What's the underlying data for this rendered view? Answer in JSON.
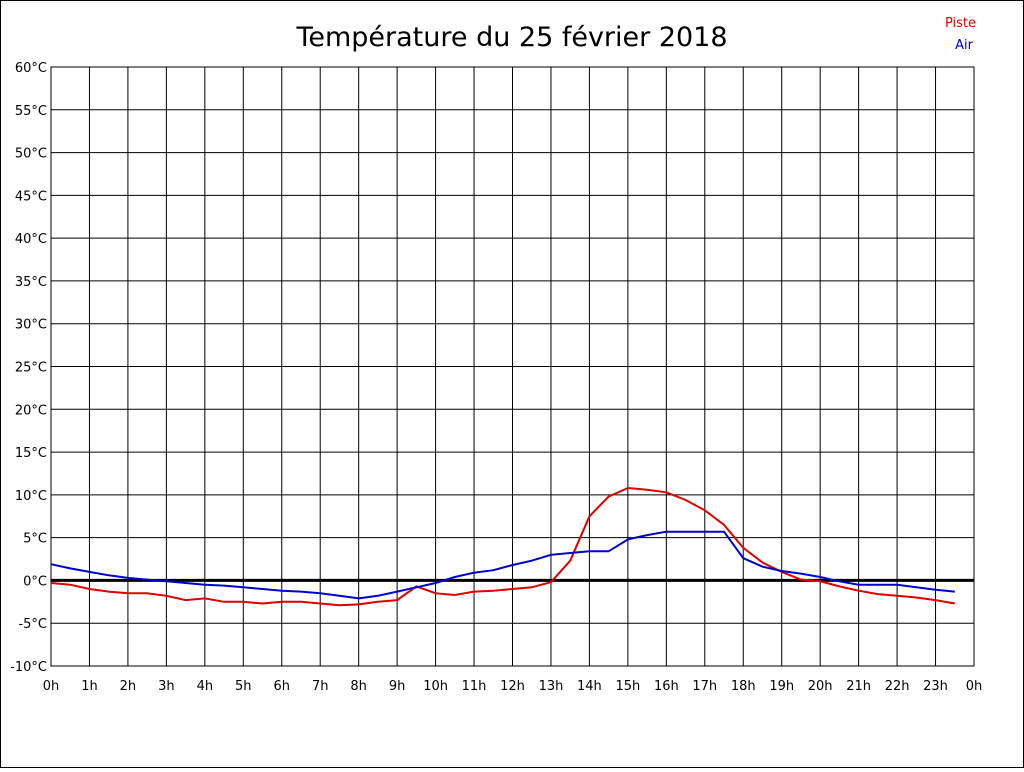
{
  "chart_data": {
    "type": "line",
    "title": "Température du 25 février 2018",
    "x_tick_labels": [
      "0h",
      "1h",
      "2h",
      "3h",
      "4h",
      "5h",
      "6h",
      "7h",
      "8h",
      "9h",
      "10h",
      "11h",
      "12h",
      "13h",
      "14h",
      "15h",
      "16h",
      "17h",
      "18h",
      "19h",
      "20h",
      "21h",
      "22h",
      "23h",
      "0h"
    ],
    "y_tick_labels": [
      "60°C",
      "55°C",
      "50°C",
      "45°C",
      "40°C",
      "35°C",
      "30°C",
      "25°C",
      "20°C",
      "15°C",
      "10°C",
      "5°C",
      "0°C",
      "-5°C",
      "-10°C"
    ],
    "xlim": [
      0,
      24
    ],
    "ylim": [
      -10,
      60
    ],
    "y_tick_values": [
      60,
      55,
      50,
      45,
      40,
      35,
      30,
      25,
      20,
      15,
      10,
      5,
      0,
      -5,
      -10
    ],
    "grid": true,
    "zero_line": true,
    "legend_position": "top-right",
    "series": [
      {
        "name": "Piste",
        "color": "#dd0000",
        "x": [
          0,
          0.5,
          1,
          1.5,
          2,
          2.5,
          3,
          3.5,
          3.75,
          4,
          4.5,
          5,
          5.5,
          6,
          6.5,
          7,
          7.5,
          8,
          8.5,
          9,
          9.5,
          10,
          10.5,
          11,
          11.5,
          12,
          12.5,
          13,
          13.5,
          14,
          14.5,
          15,
          15.5,
          16,
          16.5,
          17,
          17.5,
          18,
          18.5,
          19,
          19.5,
          20,
          20.5,
          21,
          21.5,
          22,
          22.5,
          23,
          23.5
        ],
        "y": [
          -0.3,
          -0.5,
          -1.0,
          -1.3,
          -1.5,
          -1.5,
          -1.8,
          -2.3,
          -2.2,
          -2.1,
          -2.5,
          -2.5,
          -2.7,
          -2.5,
          -2.5,
          -2.7,
          -2.9,
          -2.8,
          -2.5,
          -2.3,
          -0.7,
          -1.5,
          -1.7,
          -1.3,
          -1.2,
          -1.0,
          -0.8,
          -0.2,
          2.3,
          7.5,
          9.8,
          10.8,
          10.6,
          10.3,
          9.4,
          8.2,
          6.5,
          3.8,
          2.1,
          1.0,
          0.1,
          -0.1,
          -0.7,
          -1.2,
          -1.6,
          -1.8,
          -2.0,
          -2.3,
          -2.7
        ]
      },
      {
        "name": "Air",
        "color": "#0000cc",
        "x": [
          0,
          0.5,
          1,
          1.5,
          2,
          2.5,
          3,
          3.5,
          4,
          4.5,
          5,
          5.5,
          6,
          6.5,
          7,
          7.5,
          8,
          8.5,
          9,
          9.5,
          10,
          10.5,
          11,
          11.5,
          12,
          12.5,
          13,
          13.5,
          14,
          14.5,
          15,
          15.5,
          16,
          16.5,
          17,
          17.5,
          18,
          18.5,
          19,
          19.5,
          20,
          20.5,
          21,
          21.5,
          22,
          22.5,
          23,
          23.5
        ],
        "y": [
          1.9,
          1.4,
          1.0,
          0.6,
          0.3,
          0.1,
          -0.1,
          -0.3,
          -0.5,
          -0.6,
          -0.8,
          -1.0,
          -1.2,
          -1.3,
          -1.5,
          -1.8,
          -2.1,
          -1.8,
          -1.3,
          -0.8,
          -0.3,
          0.4,
          0.9,
          1.2,
          1.8,
          2.3,
          3.0,
          3.2,
          3.4,
          3.4,
          4.8,
          5.3,
          5.7,
          5.7,
          5.7,
          5.7,
          2.6,
          1.6,
          1.1,
          0.8,
          0.4,
          -0.1,
          -0.5,
          -0.5,
          -0.5,
          -0.8,
          -1.1,
          -1.3
        ]
      }
    ]
  }
}
